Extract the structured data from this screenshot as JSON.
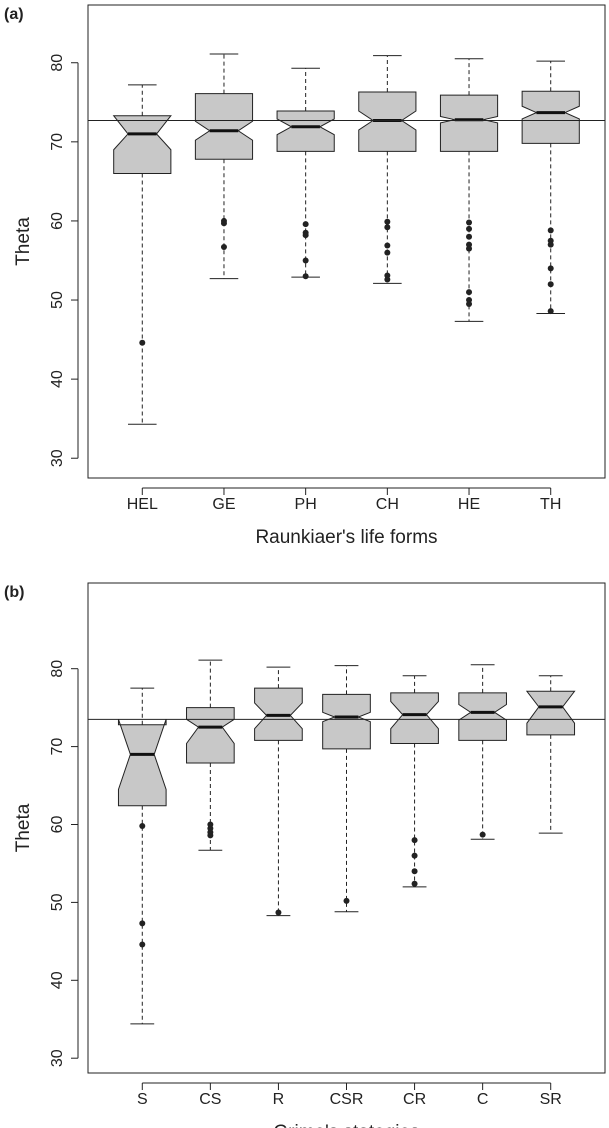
{
  "chart_data": [
    {
      "type": "box",
      "title": "(a)",
      "ylabel": "Theta",
      "xlabel": "Raunkiaer's life forms",
      "color": "#c8c8c8",
      "categories": [
        "HEL",
        "GE",
        "PH",
        "CH",
        "HE",
        "TH"
      ],
      "boxes": [
        {
          "stats": [
            34.3,
            66,
            71,
            73.3,
            77.2
          ],
          "notch": [
            69,
            73.3
          ],
          "outliers": [
            44.6
          ]
        },
        {
          "stats": [
            52.7,
            67.8,
            71.4,
            76.1,
            81.1
          ],
          "notch": [
            70.2,
            72.6
          ],
          "outliers": [
            60,
            59.7,
            56.7
          ]
        },
        {
          "stats": [
            52.9,
            68.8,
            71.9,
            73.9,
            79.3
          ],
          "notch": [
            70.9,
            72.9
          ],
          "outliers": [
            59.6,
            58.5,
            58.2,
            55,
            53
          ]
        },
        {
          "stats": [
            52.1,
            68.8,
            72.7,
            76.3,
            80.9
          ],
          "notch": [
            71.5,
            73.9
          ],
          "outliers": [
            59.9,
            59.2,
            56.9,
            56,
            53.1,
            52.6
          ]
        },
        {
          "stats": [
            47.3,
            68.8,
            72.8,
            75.9,
            80.5
          ],
          "notch": [
            72.4,
            73.2
          ],
          "outliers": [
            59.8,
            59,
            58,
            57,
            56.5,
            51,
            50,
            49.5
          ]
        },
        {
          "stats": [
            48.3,
            69.8,
            73.7,
            76.4,
            80.2
          ],
          "notch": [
            72.9,
            74.5
          ],
          "outliers": [
            58.8,
            57.5,
            57,
            54,
            52,
            48.6
          ]
        }
      ],
      "hline": 72.7,
      "ylim": [
        27.5,
        87.3
      ],
      "yticks": [
        30,
        40,
        50,
        60,
        70,
        80
      ]
    },
    {
      "type": "box",
      "title": "(b)",
      "ylabel": "Theta",
      "xlabel": "Grime's stategies",
      "color": "#c8c8c8",
      "categories": [
        "S",
        "CS",
        "R",
        "CSR",
        "CR",
        "C",
        "SR"
      ],
      "boxes": [
        {
          "stats": [
            34.4,
            62.4,
            69,
            72.8,
            77.5
          ],
          "notch": [
            64.5,
            73.5
          ],
          "outliers": [
            59.8,
            47.3,
            44.6
          ]
        },
        {
          "stats": [
            56.7,
            67.9,
            72.5,
            75,
            81.1
          ],
          "notch": [
            70.4,
            73.5
          ],
          "outliers": [
            60,
            59.5,
            59,
            58.6
          ]
        },
        {
          "stats": [
            48.3,
            70.8,
            74,
            77.5,
            80.2
          ],
          "notch": [
            72.3,
            75.6
          ],
          "outliers": [
            48.7
          ]
        },
        {
          "stats": [
            48.8,
            69.7,
            73.8,
            76.7,
            80.4
          ],
          "notch": [
            73.2,
            74.4
          ],
          "outliers": [
            50.2
          ]
        },
        {
          "stats": [
            52,
            70.4,
            74.1,
            76.9,
            79.1
          ],
          "notch": [
            72.3,
            75.8
          ],
          "outliers": [
            58,
            56,
            54,
            52.4
          ]
        },
        {
          "stats": [
            58.1,
            70.8,
            74.4,
            76.9,
            80.5
          ],
          "notch": [
            73.4,
            75.4
          ],
          "outliers": [
            58.7
          ]
        },
        {
          "stats": [
            58.9,
            71.5,
            75.1,
            77.1,
            79.1
          ],
          "notch": [
            73,
            77.1
          ],
          "outliers": []
        }
      ],
      "hline": 73.5,
      "ylim": [
        28.1,
        91
      ],
      "yticks": [
        30,
        40,
        50,
        60,
        70,
        80
      ]
    }
  ]
}
